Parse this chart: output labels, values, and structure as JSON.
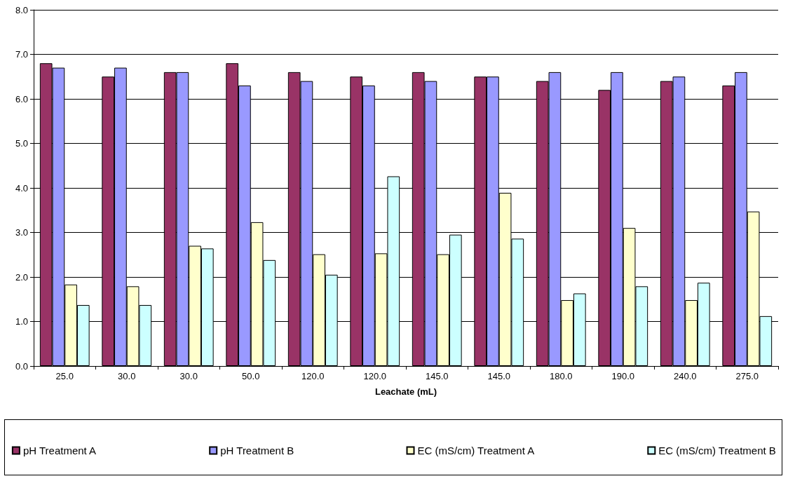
{
  "chart_data": {
    "type": "bar",
    "xlabel": "Leachate (mL)",
    "categories": [
      "25.0",
      "30.0",
      "30.0",
      "50.0",
      "120.0",
      "120.0",
      "145.0",
      "145.0",
      "180.0",
      "190.0",
      "240.0",
      "275.0"
    ],
    "series": [
      {
        "name": "pH Treatment A",
        "color": "#993366",
        "values": [
          6.8,
          6.5,
          6.6,
          6.8,
          6.6,
          6.5,
          6.6,
          6.5,
          6.4,
          6.2,
          6.4,
          6.3
        ]
      },
      {
        "name": "pH Treatment B",
        "color": "#9999ff",
        "values": [
          6.7,
          6.7,
          6.6,
          6.3,
          6.4,
          6.3,
          6.4,
          6.5,
          6.6,
          6.6,
          6.5,
          6.6
        ]
      },
      {
        "name": "EC (mS/cm) Treatment A",
        "color": "#ffffcc",
        "values": [
          1.83,
          1.79,
          2.7,
          3.23,
          2.51,
          2.53,
          2.51,
          3.89,
          1.48,
          3.1,
          1.48,
          3.47
        ]
      },
      {
        "name": "EC (mS/cm) Treatment B",
        "color": "#ccffff",
        "values": [
          1.37,
          1.37,
          2.64,
          2.38,
          2.05,
          4.26,
          2.95,
          2.86,
          1.63,
          1.79,
          1.87,
          1.12
        ]
      }
    ],
    "ylim": [
      0,
      8
    ],
    "yticks": [
      {
        "value": 0,
        "label": "0.0"
      },
      {
        "value": 1,
        "label": "1.0"
      },
      {
        "value": 2,
        "label": "2.0"
      },
      {
        "value": 3,
        "label": "3.0"
      },
      {
        "value": 4,
        "label": "4.0"
      },
      {
        "value": 5,
        "label": "5.0"
      },
      {
        "value": 6,
        "label": "6.0"
      },
      {
        "value": 7,
        "label": "7.0"
      },
      {
        "value": 8,
        "label": "8.0"
      }
    ],
    "grid": "y",
    "legend": "bottom"
  }
}
